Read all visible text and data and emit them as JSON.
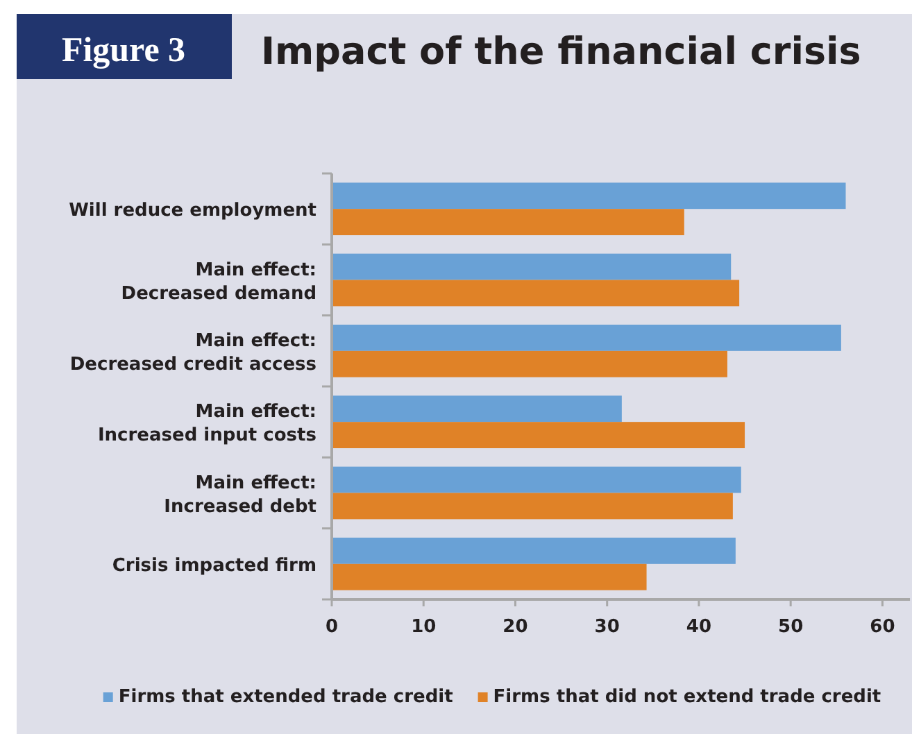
{
  "chart_data": {
    "type": "bar",
    "orientation": "horizontal",
    "title": "Impact of the financial crisis",
    "annotations": [
      "Figure 3"
    ],
    "categories": [
      "Will reduce employment",
      "Main effect:\nDecreased demand",
      "Main effect:\nDecreased credit access",
      "Main effect:\nIncreased input costs",
      "Main effect:\nIncreased debt",
      "Crisis impacted firm"
    ],
    "series": [
      {
        "name": "Firms that extended trade credit",
        "color": "#69a1d6",
        "values": [
          56,
          43.5,
          55.5,
          31.6,
          44.6,
          44.0
        ]
      },
      {
        "name": "Firms that did not extend trade credit",
        "color": "#e08227",
        "values": [
          38.4,
          44.4,
          43.1,
          45.0,
          43.7,
          34.3
        ]
      }
    ],
    "xlim": [
      0,
      63
    ],
    "xticks": [
      0,
      10,
      20,
      30,
      40,
      50,
      60
    ],
    "grid": false,
    "legend": "bottom"
  }
}
